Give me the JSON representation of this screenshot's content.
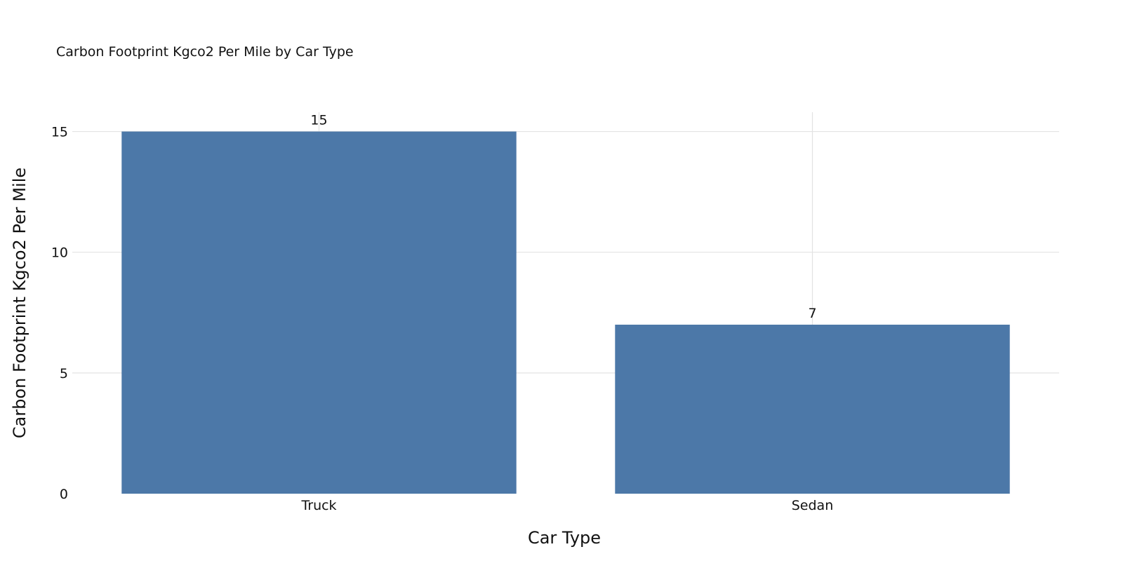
{
  "chart_data": {
    "type": "bar",
    "title": "Carbon Footprint Kgco2 Per Mile by Car Type",
    "xlabel": "Car Type",
    "ylabel": "Carbon Footprint Kgco2 Per Mile",
    "categories": [
      "Truck",
      "Sedan"
    ],
    "values": [
      15,
      7
    ],
    "data_labels": [
      "15",
      "7"
    ],
    "y_ticks": [
      0,
      5,
      10,
      15
    ],
    "y_tick_labels": [
      "0",
      "5",
      "10",
      "15"
    ],
    "ylim": [
      0,
      15.8
    ],
    "grid": true,
    "legend": "none",
    "colors": {
      "bar": "#4c78a8",
      "grid": "#e3e3e3",
      "text": "#111111"
    }
  }
}
